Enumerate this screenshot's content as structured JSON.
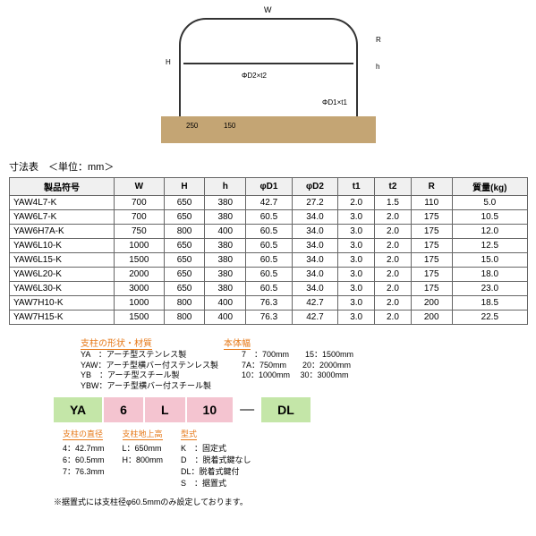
{
  "diagram": {
    "w_label": "W",
    "h_label": "H",
    "small_h": "h",
    "r_label": "R",
    "d1_label": "ΦD1×t1",
    "d2_label": "ΦD2×t2",
    "depth1": "250",
    "depth2": "150"
  },
  "table_title": "寸法表　＜単位：mm＞",
  "headers": [
    "製品符号",
    "W",
    "H",
    "h",
    "φD1",
    "φD2",
    "t1",
    "t2",
    "R",
    "質量(kg)"
  ],
  "rows": [
    [
      "YAW4L7-K",
      "700",
      "650",
      "380",
      "42.7",
      "27.2",
      "2.0",
      "1.5",
      "110",
      "5.0"
    ],
    [
      "YAW6L7-K",
      "700",
      "650",
      "380",
      "60.5",
      "34.0",
      "3.0",
      "2.0",
      "175",
      "10.5"
    ],
    [
      "YAW6H7A-K",
      "750",
      "800",
      "400",
      "60.5",
      "34.0",
      "3.0",
      "2.0",
      "175",
      "12.0"
    ],
    [
      "YAW6L10-K",
      "1000",
      "650",
      "380",
      "60.5",
      "34.0",
      "3.0",
      "2.0",
      "175",
      "12.5"
    ],
    [
      "YAW6L15-K",
      "1500",
      "650",
      "380",
      "60.5",
      "34.0",
      "3.0",
      "2.0",
      "175",
      "15.0"
    ],
    [
      "YAW6L20-K",
      "2000",
      "650",
      "380",
      "60.5",
      "34.0",
      "3.0",
      "2.0",
      "175",
      "18.0"
    ],
    [
      "YAW6L30-K",
      "3000",
      "650",
      "380",
      "60.5",
      "34.0",
      "3.0",
      "2.0",
      "175",
      "23.0"
    ],
    [
      "YAW7H10-K",
      "1000",
      "800",
      "400",
      "76.3",
      "42.7",
      "3.0",
      "2.0",
      "200",
      "18.5"
    ],
    [
      "YAW7H15-K",
      "1500",
      "800",
      "400",
      "76.3",
      "42.7",
      "3.0",
      "2.0",
      "200",
      "22.5"
    ]
  ],
  "code_section": {
    "shape_title": "支柱の形状・材質",
    "width_title": "本体幅",
    "shape_items": [
      "YA　：アーチ型ステンレス製",
      "YAW：アーチ型横バー付ステンレス製",
      "YB　：アーチ型スチール製",
      "YBW：アーチ型横バー付スチール製"
    ],
    "width_items": [
      "7　：700mm　　15：1500mm",
      "7A：750mm　　20：2000mm",
      "10：1000mm　 30：3000mm"
    ],
    "boxes": [
      "YA",
      "6",
      "L",
      "10",
      "DL"
    ],
    "diameter_title": "支柱の直径",
    "diameter_items": [
      "4：42.7mm",
      "6：60.5mm",
      "7：76.3mm"
    ],
    "height_title": "支柱地上高",
    "height_items": [
      "L：650mm",
      "H：800mm"
    ],
    "type_title": "型式",
    "type_items": [
      "K　：固定式",
      "D　：脱着式鍵なし",
      "DL：脱着式鍵付",
      "S　：据置式"
    ]
  },
  "footnote": "※据置式には支柱径φ60.5mmのみ設定しております。"
}
